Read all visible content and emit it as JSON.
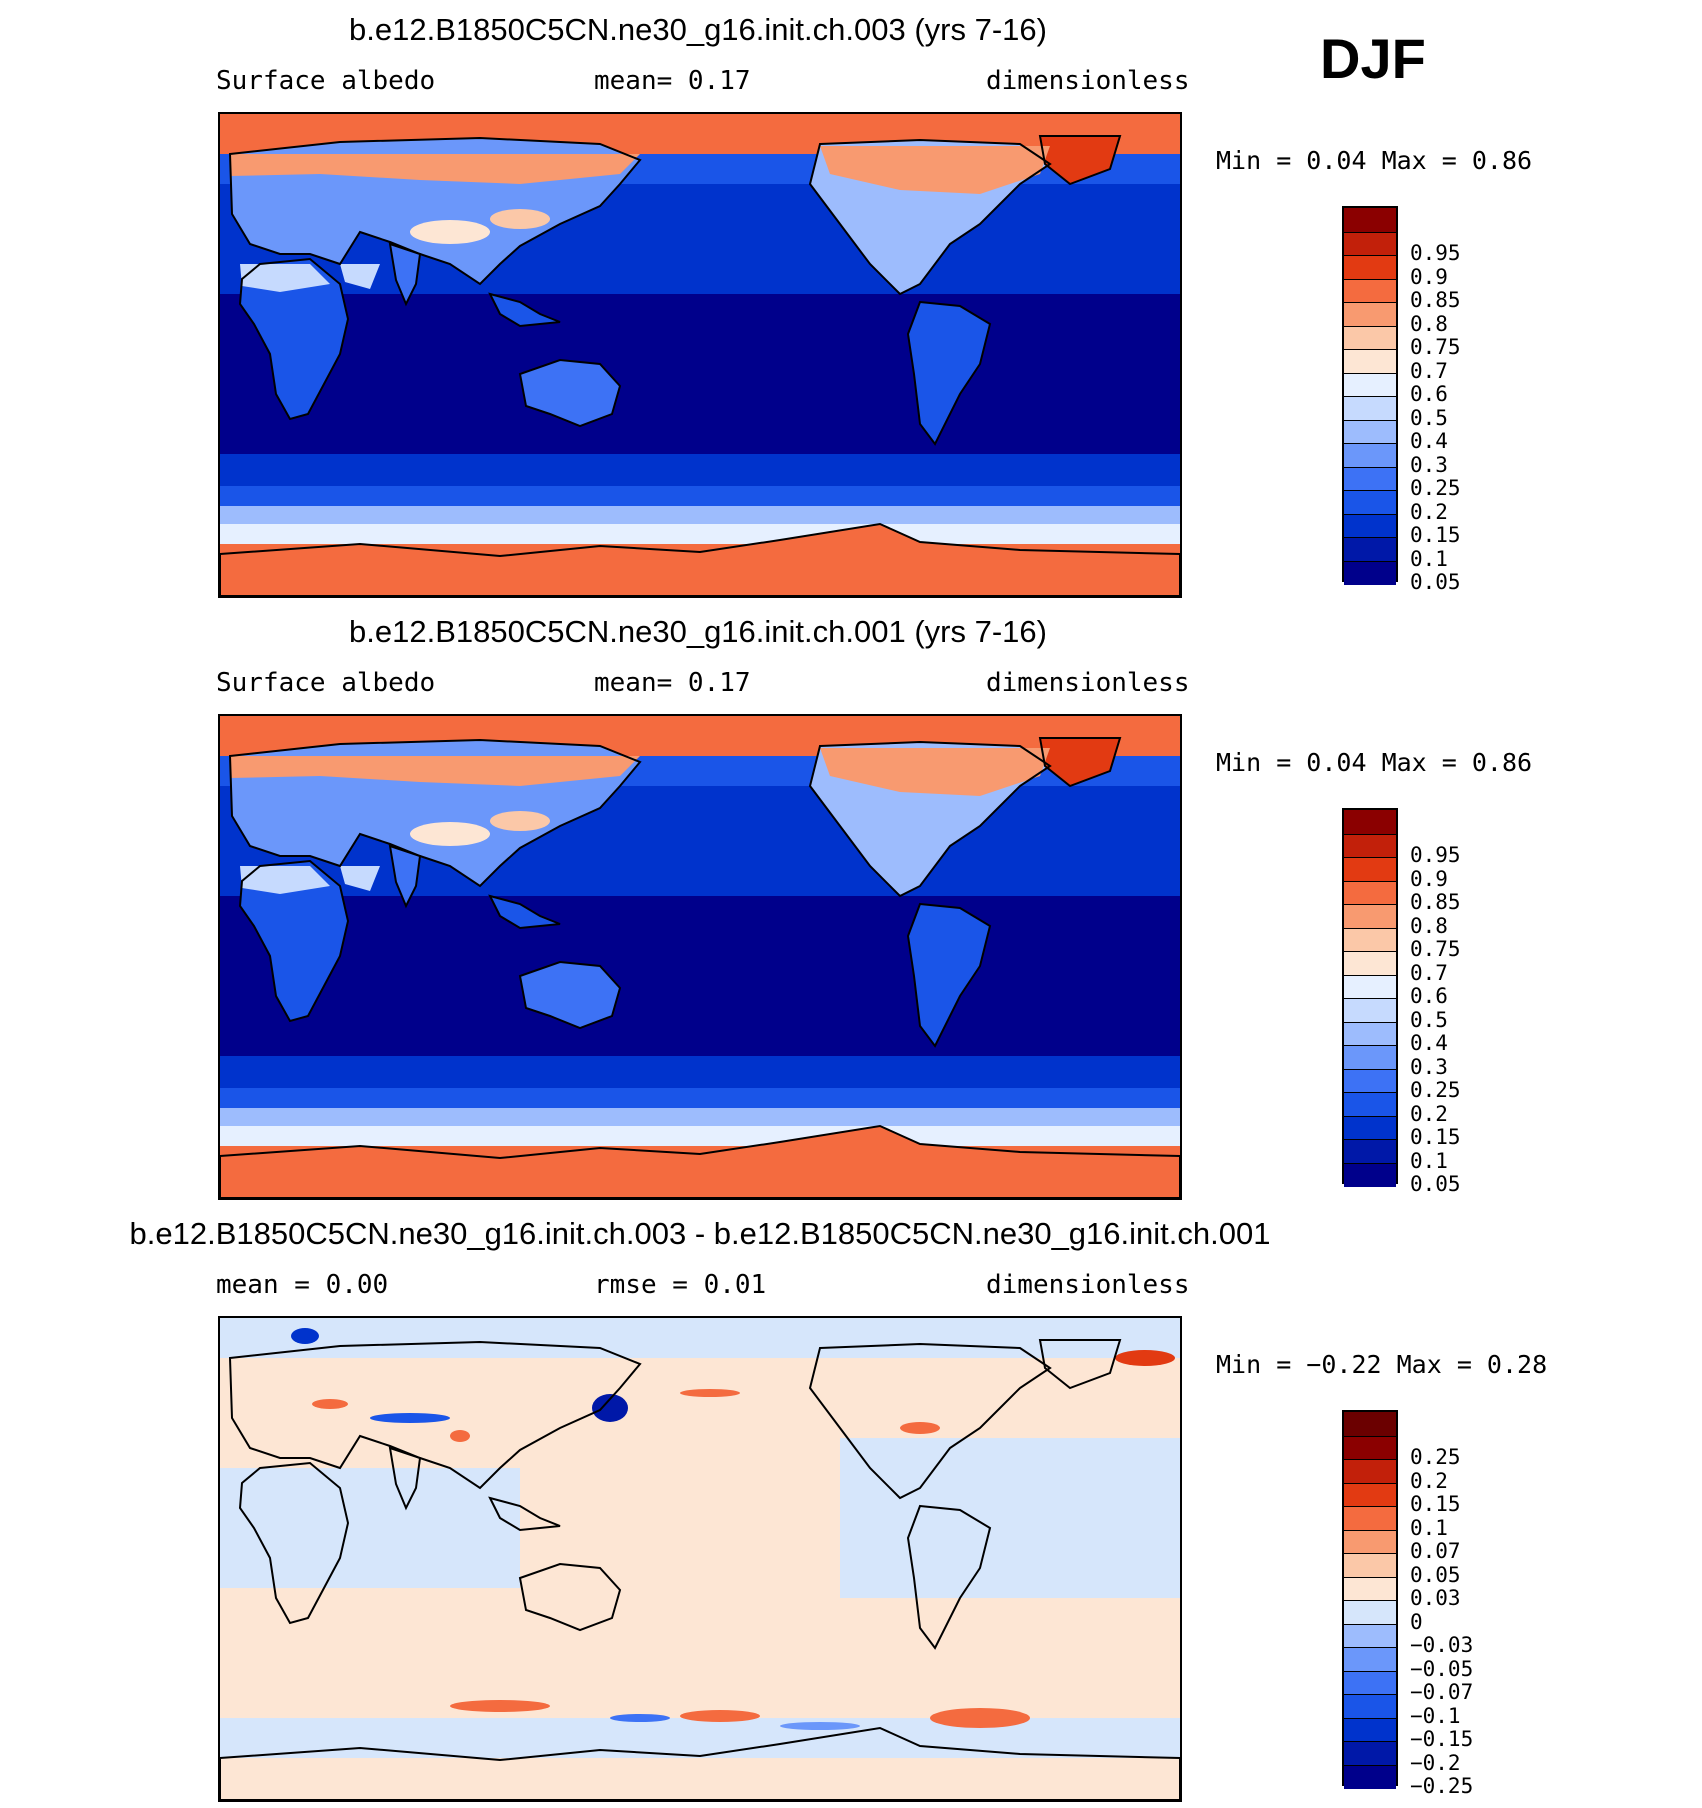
{
  "season": "DJF",
  "panels": [
    {
      "title": "b.e12.B1850C5CN.ne30_g16.init.ch.003 (yrs 7-16)",
      "left": "Surface  albedo",
      "center": "mean=    0.17",
      "right": "dimensionless",
      "minmax": "Min =    0.04 Max =    0.86",
      "kind": "abs"
    },
    {
      "title": "b.e12.B1850C5CN.ne30_g16.init.ch.001 (yrs 7-16)",
      "left": "Surface  albedo",
      "center": "mean=    0.17",
      "right": "dimensionless",
      "minmax": "Min =    0.04 Max =    0.86",
      "kind": "abs"
    },
    {
      "title": "b.e12.B1850C5CN.ne30_g16.init.ch.003 - b.e12.B1850C5CN.ne30_g16.init.ch.001",
      "left": "mean =    0.00",
      "center": "rmse =    0.01",
      "right": "dimensionless",
      "minmax": "Min =   −0.22 Max =    0.28",
      "kind": "diff"
    }
  ],
  "chart_data": [
    {
      "type": "heatmap",
      "title": "b.e12.B1850C5CN.ne30_g16.init.ch.003 (yrs 7-16)",
      "variable": "Surface albedo",
      "units": "dimensionless",
      "mean": 0.17,
      "min": 0.04,
      "max": 0.86,
      "levels": [
        "0.05",
        "0.1",
        "0.15",
        "0.2",
        "0.25",
        "0.3",
        "0.4",
        "0.5",
        "0.6",
        "0.7",
        "0.75",
        "0.8",
        "0.85",
        "0.9",
        "0.95"
      ],
      "colors": [
        "#00008b",
        "#0018a8",
        "#0033cc",
        "#1a55e8",
        "#3d72f5",
        "#6b97fa",
        "#9dbcfd",
        "#c6dafe",
        "#e6f0ff",
        "#fde6d4",
        "#fbc8a8",
        "#f89a70",
        "#f46b3f",
        "#e23a12",
        "#c2200a",
        "#8b0000"
      ]
    },
    {
      "type": "heatmap",
      "title": "b.e12.B1850C5CN.ne30_g16.init.ch.001 (yrs 7-16)",
      "variable": "Surface albedo",
      "units": "dimensionless",
      "mean": 0.17,
      "min": 0.04,
      "max": 0.86,
      "levels": [
        "0.05",
        "0.1",
        "0.15",
        "0.2",
        "0.25",
        "0.3",
        "0.4",
        "0.5",
        "0.6",
        "0.7",
        "0.75",
        "0.8",
        "0.85",
        "0.9",
        "0.95"
      ],
      "colors": [
        "#00008b",
        "#0018a8",
        "#0033cc",
        "#1a55e8",
        "#3d72f5",
        "#6b97fa",
        "#9dbcfd",
        "#c6dafe",
        "#e6f0ff",
        "#fde6d4",
        "#fbc8a8",
        "#f89a70",
        "#f46b3f",
        "#e23a12",
        "#c2200a",
        "#8b0000"
      ]
    },
    {
      "type": "heatmap",
      "title": "b.e12.B1850C5CN.ne30_g16.init.ch.003 - b.e12.B1850C5CN.ne30_g16.init.ch.001",
      "units": "dimensionless",
      "mean": 0.0,
      "rmse": 0.01,
      "min": -0.22,
      "max": 0.28,
      "levels": [
        "−0.25",
        "−0.2",
        "−0.15",
        "−0.1",
        "−0.07",
        "−0.05",
        "−0.03",
        "0",
        "0.03",
        "0.05",
        "0.07",
        "0.1",
        "0.15",
        "0.2",
        "0.25"
      ],
      "colors": [
        "#00008b",
        "#0018a8",
        "#0033cc",
        "#1a55e8",
        "#3d72f5",
        "#6b97fa",
        "#9dbcfd",
        "#d6e6fb",
        "#fde6d4",
        "#fbc8a8",
        "#f89a70",
        "#f46b3f",
        "#e23a12",
        "#c2200a",
        "#8b0000",
        "#6b0000"
      ]
    }
  ]
}
